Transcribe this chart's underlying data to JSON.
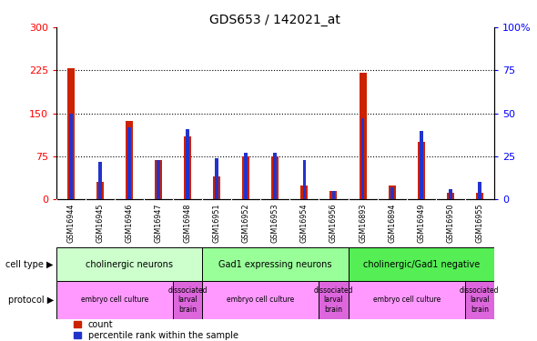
{
  "title": "GDS653 / 142021_at",
  "samples": [
    "GSM16944",
    "GSM16945",
    "GSM16946",
    "GSM16947",
    "GSM16948",
    "GSM16951",
    "GSM16952",
    "GSM16953",
    "GSM16954",
    "GSM16956",
    "GSM16893",
    "GSM16894",
    "GSM16949",
    "GSM16950",
    "GSM16955"
  ],
  "counts": [
    228,
    30,
    137,
    68,
    110,
    40,
    75,
    75,
    25,
    15,
    220,
    25,
    100,
    12,
    12
  ],
  "percentiles": [
    50,
    22,
    42,
    23,
    41,
    24,
    27,
    27,
    23,
    5,
    47,
    7,
    40,
    6,
    10
  ],
  "ylim_left": [
    0,
    300
  ],
  "yticks_left": [
    0,
    75,
    150,
    225,
    300
  ],
  "ylim_right": [
    0,
    100
  ],
  "yticks_right": [
    0,
    25,
    50,
    75,
    100
  ],
  "bar_color_red": "#cc2200",
  "bar_color_blue": "#2233cc",
  "cell_types": [
    {
      "label": "cholinergic neurons",
      "start": 0,
      "end": 5,
      "color": "#ccffcc"
    },
    {
      "label": "Gad1 expressing neurons",
      "start": 5,
      "end": 10,
      "color": "#99ff99"
    },
    {
      "label": "cholinergic/Gad1 negative",
      "start": 10,
      "end": 15,
      "color": "#55ee55"
    }
  ],
  "protocols": [
    {
      "label": "embryo cell culture",
      "start": 0,
      "end": 4,
      "color": "#ff99ff"
    },
    {
      "label": "dissociated\nlarval\nbrain",
      "start": 4,
      "end": 5,
      "color": "#dd66dd"
    },
    {
      "label": "embryo cell culture",
      "start": 5,
      "end": 9,
      "color": "#ff99ff"
    },
    {
      "label": "dissociated\nlarval\nbrain",
      "start": 9,
      "end": 10,
      "color": "#dd66dd"
    },
    {
      "label": "embryo cell culture",
      "start": 10,
      "end": 14,
      "color": "#ff99ff"
    },
    {
      "label": "dissociated\nlarval\nbrain",
      "start": 14,
      "end": 15,
      "color": "#dd66dd"
    }
  ],
  "legend_count_label": "count",
  "legend_pct_label": "percentile rank within the sample",
  "cell_type_label": "cell type",
  "protocol_label": "protocol",
  "bg_color": "#ffffff",
  "xtick_bg": "#c8c8c8",
  "red_bar_width": 0.25,
  "blue_bar_width": 0.12
}
